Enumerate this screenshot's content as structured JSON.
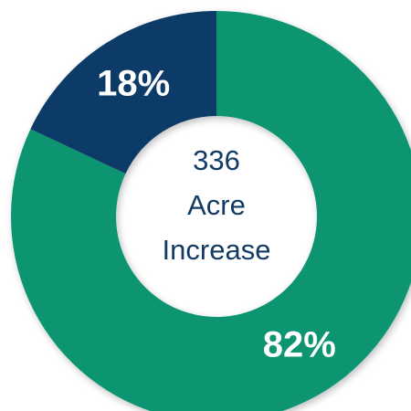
{
  "chart_data": {
    "type": "donut",
    "values": [
      82,
      18
    ],
    "value_labels": [
      "82%",
      "18%"
    ],
    "colors": [
      "#0a9471",
      "#0f3a67"
    ],
    "annotation": [
      "336",
      "Acre",
      "Increase"
    ]
  }
}
